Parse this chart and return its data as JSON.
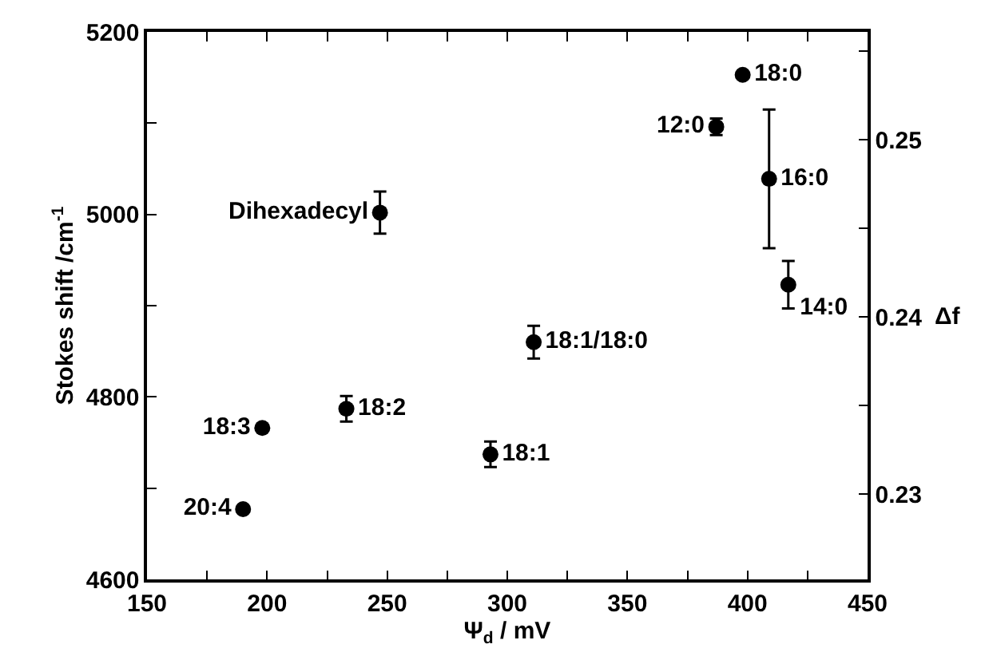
{
  "chart_data": {
    "type": "scatter",
    "xlabel": "Ψ$_{d}$ / mV",
    "ylabel": "Stokes shift /cm$^{-1}$",
    "y2label": "Δf",
    "x": [
      190,
      198,
      233,
      247,
      293,
      311,
      387,
      398,
      409,
      417
    ],
    "series": [
      {
        "color": "#000000",
        "values": [
          4677,
          4766,
          4787,
          5002,
          4737,
          4860,
          5096,
          5153,
          5039,
          4923
        ],
        "errors": [
          null,
          null,
          14,
          23,
          14,
          18,
          9,
          null,
          76,
          26
        ],
        "value_labels": [
          "20:4",
          "18:3",
          "18:2",
          "Dihexadecyl",
          "18:1",
          "18:1/18:0",
          "12:0",
          "18:0",
          "16:0",
          "14:0"
        ]
      }
    ],
    "xlim": [
      150,
      450
    ],
    "xticks": [
      150,
      {
        "value": 175,
        "label": null
      },
      200,
      {
        "value": 225,
        "label": null
      },
      250,
      {
        "value": 275,
        "label": null
      },
      300,
      {
        "value": 325,
        "label": null
      },
      350,
      {
        "value": 375,
        "label": null
      },
      400,
      {
        "value": 425,
        "label": null
      },
      450
    ],
    "ylim": [
      4600,
      5200
    ],
    "yticks": [
      4600,
      {
        "value": 4700,
        "label": null
      },
      4800,
      {
        "value": 4900,
        "label": null
      },
      5000,
      {
        "value": 5100,
        "label": null
      },
      5200
    ],
    "y2lim": [
      0.2252,
      0.2561
    ],
    "y2ticks": [
      0.23,
      {
        "value": 0.235,
        "label": null
      },
      0.24,
      {
        "value": 0.245,
        "label": null
      },
      0.25,
      {
        "value": 0.255,
        "label": null
      }
    ],
    "marker": "circle"
  }
}
